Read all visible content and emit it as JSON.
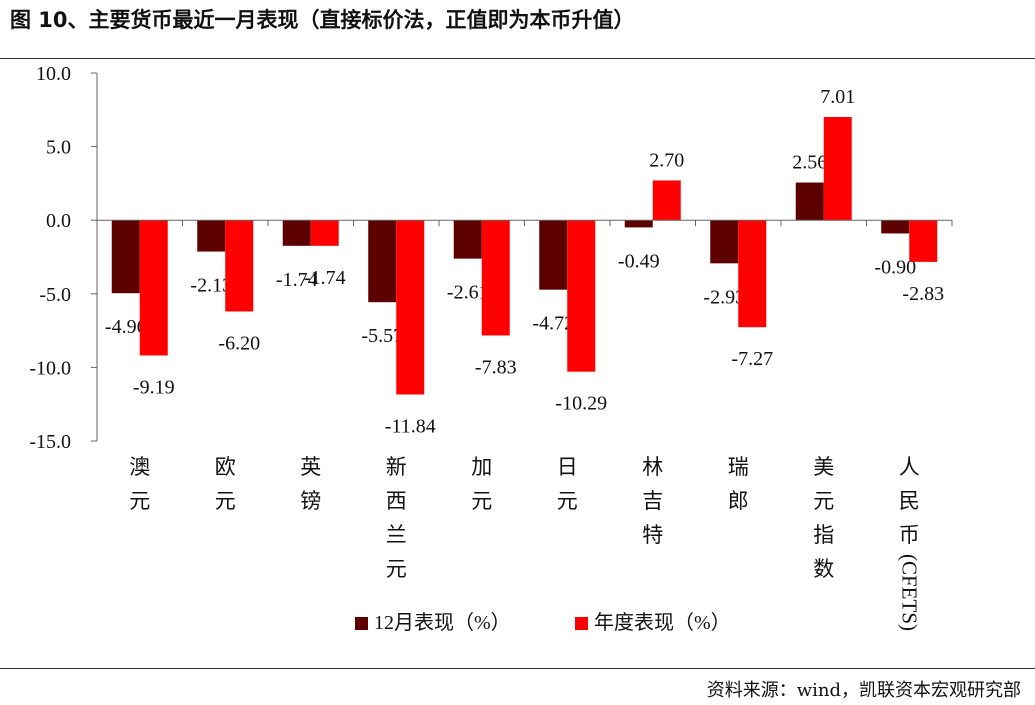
{
  "title": "图 10、主要货币最近一月表现（直接标价法，正值即为本币升值）",
  "source": "资料来源：wind，凯联资本宏观研究部",
  "colors": {
    "series_a": "#5c0000",
    "series_b": "#ff0000"
  },
  "chart_data": {
    "type": "bar",
    "title": "",
    "xlabel": "",
    "ylabel": "",
    "ylim": [
      -15,
      10
    ],
    "yticks": [
      "10.0",
      "5.0",
      "0.0",
      "-5.0",
      "-10.0",
      "-15.0"
    ],
    "ytick_values": [
      10,
      5,
      0,
      -5,
      -10,
      -15
    ],
    "grid": false,
    "legend": "bottom",
    "categories": [
      "澳元",
      "欧元",
      "英镑",
      "新西兰元",
      "加元",
      "日元",
      "林吉特",
      "瑞郎",
      "美元指数",
      "人民币(CFETS)"
    ],
    "series": [
      {
        "name": "12月表现（%）",
        "values": [
          -4.96,
          -2.13,
          -1.74,
          -5.57,
          -2.61,
          -4.72,
          -0.49,
          -2.93,
          2.56,
          -0.9
        ]
      },
      {
        "name": "年度表现（%）",
        "values": [
          -9.19,
          -6.2,
          -1.74,
          -11.84,
          -7.83,
          -10.29,
          2.7,
          -7.27,
          7.01,
          -2.83
        ]
      }
    ]
  }
}
